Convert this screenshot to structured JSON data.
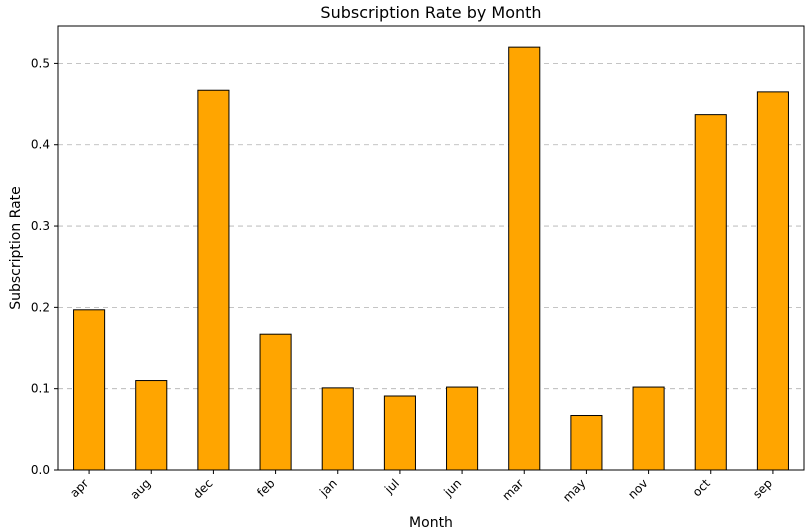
{
  "chart_data": {
    "type": "bar",
    "title": "Subscription Rate by Month",
    "xlabel": "Month",
    "ylabel": "Subscription Rate",
    "categories": [
      "apr",
      "aug",
      "dec",
      "feb",
      "jan",
      "jul",
      "jun",
      "mar",
      "may",
      "nov",
      "oct",
      "sep"
    ],
    "values": [
      0.197,
      0.11,
      0.467,
      0.167,
      0.101,
      0.091,
      0.102,
      0.52,
      0.067,
      0.102,
      0.437,
      0.465
    ],
    "ylim": [
      0,
      0.546
    ],
    "yticks": [
      "0.0",
      "0.1",
      "0.2",
      "0.3",
      "0.4",
      "0.5"
    ],
    "grid": "y-dashed",
    "bar_color": "#FFA500",
    "edge_color": "#000000"
  }
}
